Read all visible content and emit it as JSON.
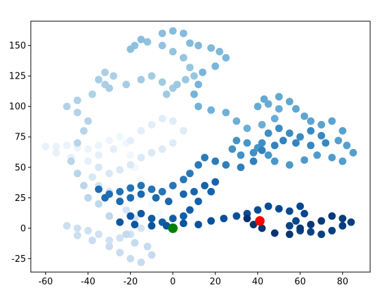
{
  "chart_data": {
    "type": "scatter",
    "xlim": [
      -67,
      93
    ],
    "ylim": [
      -36,
      170
    ],
    "xticks": [
      -60,
      -40,
      -20,
      0,
      20,
      40,
      60,
      80
    ],
    "yticks": [
      -25,
      0,
      25,
      50,
      75,
      100,
      125,
      150
    ],
    "series": [
      {
        "colormap": "Blues",
        "x": [
          0,
          -3,
          -6,
          -10,
          -12,
          -15,
          -18,
          -20,
          -22,
          -25,
          -30,
          -35,
          -40,
          -45,
          -50,
          -55,
          -60,
          -55,
          -48,
          -40,
          -35,
          -28,
          -20,
          -15,
          -10,
          -5,
          0,
          5,
          0,
          -5,
          -10,
          -15,
          -20,
          -25,
          -30,
          -35,
          -38,
          -35,
          -30,
          -25,
          -22,
          -18,
          -15,
          -20,
          -25,
          -30,
          -35,
          -40,
          -45,
          -50,
          -45,
          -38,
          -30,
          -25,
          -20,
          -15,
          -10,
          -12,
          -18,
          -22,
          -25,
          -30,
          -35,
          -40,
          -42,
          -45,
          -48,
          -45,
          -42,
          -40,
          -45,
          -50,
          -45,
          -38,
          -32,
          -28,
          -32,
          -35,
          -30,
          -22,
          -15,
          -10,
          -5,
          0,
          -3,
          2,
          6,
          10,
          8,
          5,
          0,
          -5,
          -12,
          -18,
          -20,
          -15,
          -5,
          0,
          5,
          8,
          12,
          18,
          22,
          25,
          20,
          14,
          12,
          10,
          12,
          18,
          25,
          30,
          35,
          42,
          48,
          50,
          45,
          40,
          43,
          50,
          55,
          58,
          62,
          65,
          70,
          75,
          80,
          78,
          82,
          85,
          80,
          75,
          68,
          62,
          55,
          48,
          45,
          40,
          35,
          30,
          28,
          32,
          38,
          42,
          45,
          50,
          55,
          60,
          65,
          70,
          72,
          65,
          58,
          52,
          48,
          42,
          38,
          32,
          25,
          20,
          15,
          12,
          8,
          5,
          0,
          -5,
          -10,
          -15,
          -20,
          -25,
          -30,
          -35,
          -32,
          -25,
          -20,
          -15,
          -8,
          -2,
          5,
          10,
          15,
          20,
          18,
          12,
          8,
          5,
          0,
          -5,
          -10,
          -15,
          -20,
          -25,
          -18,
          -10,
          -3,
          5,
          12,
          18,
          24,
          30,
          35,
          40,
          45,
          50,
          55,
          60,
          62,
          58,
          55,
          60,
          65,
          70,
          75,
          80,
          84,
          80,
          75,
          70,
          65,
          60,
          55,
          48,
          42,
          38,
          35,
          41
        ],
        "y": [
          0,
          5,
          12,
          20,
          30,
          40,
          50,
          60,
          70,
          75,
          72,
          68,
          65,
          66,
          68,
          67,
          67,
          62,
          58,
          55,
          60,
          65,
          72,
          80,
          85,
          90,
          88,
          80,
          70,
          65,
          62,
          58,
          52,
          48,
          45,
          50,
          42,
          35,
          30,
          22,
          15,
          8,
          0,
          -5,
          -8,
          -10,
          -5,
          -2,
          0,
          2,
          -6,
          -10,
          -15,
          -20,
          -25,
          -28,
          -22,
          -15,
          -12,
          -5,
          5,
          10,
          20,
          25,
          35,
          45,
          55,
          70,
          80,
          88,
          95,
          100,
          105,
          110,
          118,
          125,
          128,
          122,
          115,
          118,
          122,
          125,
          120,
          115,
          110,
          118,
          122,
          125,
          132,
          140,
          145,
          150,
          153,
          150,
          147,
          155,
          160,
          162,
          160,
          152,
          150,
          148,
          145,
          140,
          133,
          128,
          118,
          110,
          100,
          97,
          95,
          88,
          82,
          85,
          90,
          98,
          102,
          100,
          106,
          108,
          104,
          98,
          92,
          88,
          85,
          88,
          80,
          72,
          68,
          62,
          55,
          58,
          60,
          56,
          52,
          55,
          60,
          66,
          70,
          72,
          65,
          60,
          62,
          70,
          78,
          82,
          78,
          75,
          80,
          76,
          70,
          68,
          70,
          72,
          68,
          64,
          55,
          50,
          52,
          55,
          58,
          52,
          45,
          40,
          35,
          30,
          32,
          35,
          33,
          30,
          28,
          32,
          25,
          22,
          25,
          28,
          25,
          22,
          28,
          30,
          35,
          38,
          30,
          22,
          15,
          10,
          8,
          5,
          8,
          12,
          10,
          5,
          3,
          2,
          2,
          4,
          3,
          6,
          8,
          10,
          12,
          15,
          18,
          16,
          14,
          18,
          12,
          6,
          2,
          -2,
          -3,
          -5,
          -2,
          2,
          5,
          8,
          10,
          6,
          3,
          0,
          -5,
          -4,
          0,
          3,
          8,
          6
        ]
      },
      {
        "color": "green",
        "x": [
          0
        ],
        "y": [
          0
        ]
      },
      {
        "color": "red",
        "x": [
          41
        ],
        "y": [
          6
        ]
      }
    ]
  }
}
